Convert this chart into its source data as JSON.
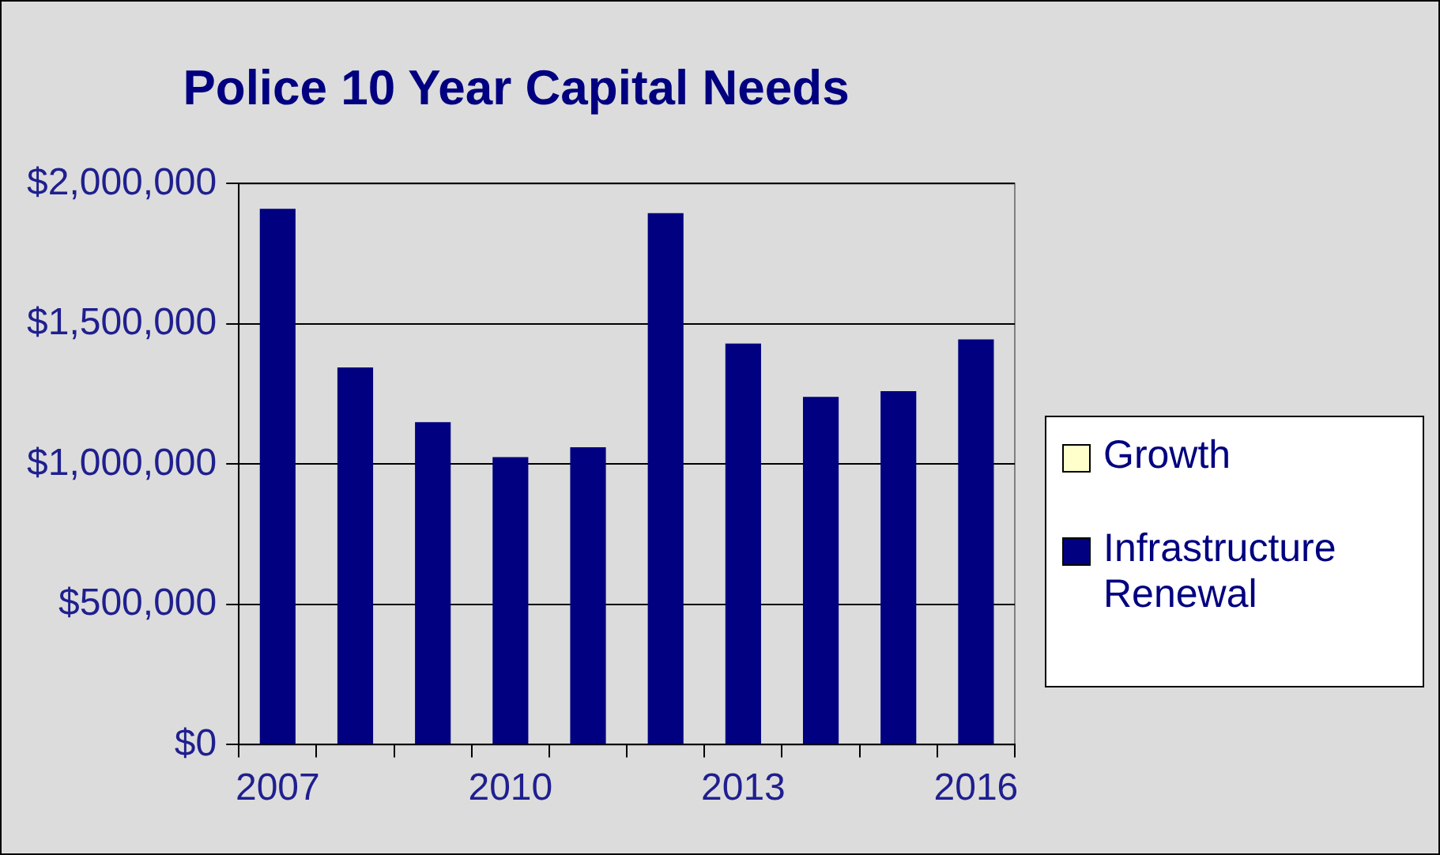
{
  "chart_data": {
    "type": "bar",
    "title": "Police 10 Year Capital Needs",
    "categories": [
      "2007",
      null,
      null,
      "2010",
      null,
      null,
      "2013",
      null,
      null,
      "2016"
    ],
    "series": [
      {
        "name": "Growth",
        "color": "#ffffcc",
        "values": [
          0,
          0,
          0,
          0,
          0,
          0,
          0,
          0,
          0,
          0
        ]
      },
      {
        "name": "Infrastructure Renewal",
        "color": "#000080",
        "values": [
          1910000,
          1345000,
          1150000,
          1025000,
          1060000,
          1895000,
          1430000,
          1240000,
          1260000,
          1445000
        ]
      }
    ],
    "stacked": true,
    "ylim": [
      0,
      2000000
    ],
    "yticks": [
      {
        "value": 0,
        "label": "$0"
      },
      {
        "value": 500000,
        "label": "$500,000"
      },
      {
        "value": 1000000,
        "label": "$1,000,000"
      },
      {
        "value": 1500000,
        "label": "$1,500,000"
      },
      {
        "value": 2000000,
        "label": "$2,000,000"
      }
    ],
    "grid": "y",
    "legend": "right"
  }
}
